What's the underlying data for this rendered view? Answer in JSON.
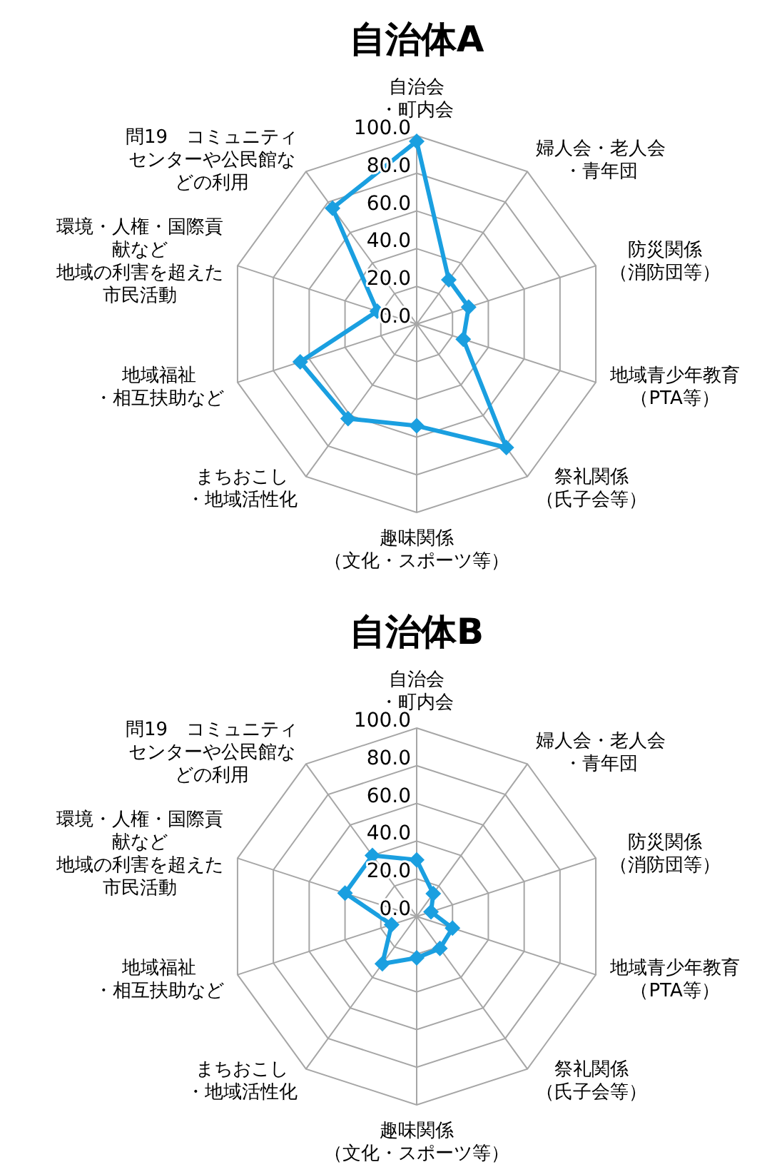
{
  "chart_data": [
    {
      "type": "radar",
      "title": "自治体A",
      "categories": [
        "自治会・町内会",
        "婦人会・老人会・青年団",
        "防災関係（消防団等）",
        "地域青少年教育（PTA等）",
        "祭礼関係（氏子会等）",
        "趣味関係（文化・スポーツ等）",
        "まちおこし・地域活性化",
        "地域福祉・相互扶助など",
        "環境・人権・国際貢献など地域の利害を超えた市民活動",
        "問19　コミュニティセンターや公民館などの利用"
      ],
      "series": [
        {
          "color": "#1a9fe0",
          "values": [
            97,
            29,
            29,
            26,
            81,
            54,
            62,
            65,
            22,
            76
          ]
        }
      ],
      "ylim": [
        0,
        100
      ],
      "yticks": [
        {
          "value": 0,
          "label": "0.0"
        },
        {
          "value": 20,
          "label": "20.0"
        },
        {
          "value": 40,
          "label": "40.0"
        },
        {
          "value": 60,
          "label": "60.0"
        },
        {
          "value": 80,
          "label": "80.0"
        },
        {
          "value": 100,
          "label": "100.0"
        }
      ],
      "marker": "diamond",
      "grid": true
    },
    {
      "type": "radar",
      "title": "自治体B",
      "categories": [
        "自治会・町内会",
        "婦人会・老人会・青年団",
        "防災関係（消防団等）",
        "地域青少年教育（PTA等）",
        "祭礼関係（氏子会等）",
        "趣味関係（文化・スポーツ等）",
        "まちおこし・地域活性化",
        "地域福祉・相互扶助など",
        "環境・人権・国際貢献など地域の利害を超えた市民活動",
        "問19　コミュニティセンターや公民館などの利用"
      ],
      "series": [
        {
          "color": "#1a9fe0",
          "values": [
            30,
            15,
            8,
            20,
            21,
            22,
            31,
            14,
            40,
            40
          ]
        }
      ],
      "ylim": [
        0,
        100
      ],
      "yticks": [
        {
          "value": 0,
          "label": "0.0"
        },
        {
          "value": 20,
          "label": "20.0"
        },
        {
          "value": 40,
          "label": "40.0"
        },
        {
          "value": 60,
          "label": "60.0"
        },
        {
          "value": 80,
          "label": "80.0"
        },
        {
          "value": 100,
          "label": "100.0"
        }
      ],
      "marker": "diamond",
      "grid": true
    }
  ]
}
